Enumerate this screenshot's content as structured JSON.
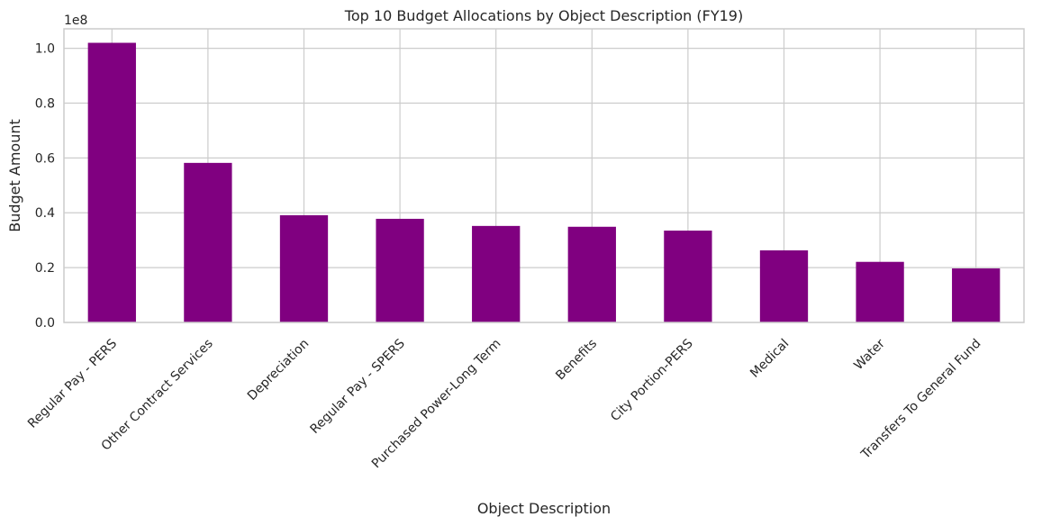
{
  "chart_data": {
    "type": "bar",
    "title": "Top 10 Budget Allocations by Object Description (FY19)",
    "xlabel": "Object Description",
    "ylabel": "Budget Amount",
    "y_offset_label": "1e8",
    "categories": [
      "Regular Pay - PERS",
      "Other Contract Services",
      "Depreciation",
      "Regular Pay - SPERS",
      "Purchased Power-Long Term",
      "Benefits",
      "City Portion-PERS",
      "Medical",
      "Water",
      "Transfers To General Fund"
    ],
    "values": [
      102000000,
      58200000,
      39100000,
      37800000,
      35200000,
      34900000,
      33500000,
      26300000,
      22100000,
      19700000
    ],
    "yticks": [
      0,
      0.2,
      0.4,
      0.6,
      0.8,
      1.0
    ],
    "ytick_labels": [
      "0.0",
      "0.2",
      "0.4",
      "0.6",
      "0.8",
      "1.0"
    ],
    "ylim": [
      0,
      107100000
    ],
    "bar_color": "#800080",
    "grid": true
  }
}
